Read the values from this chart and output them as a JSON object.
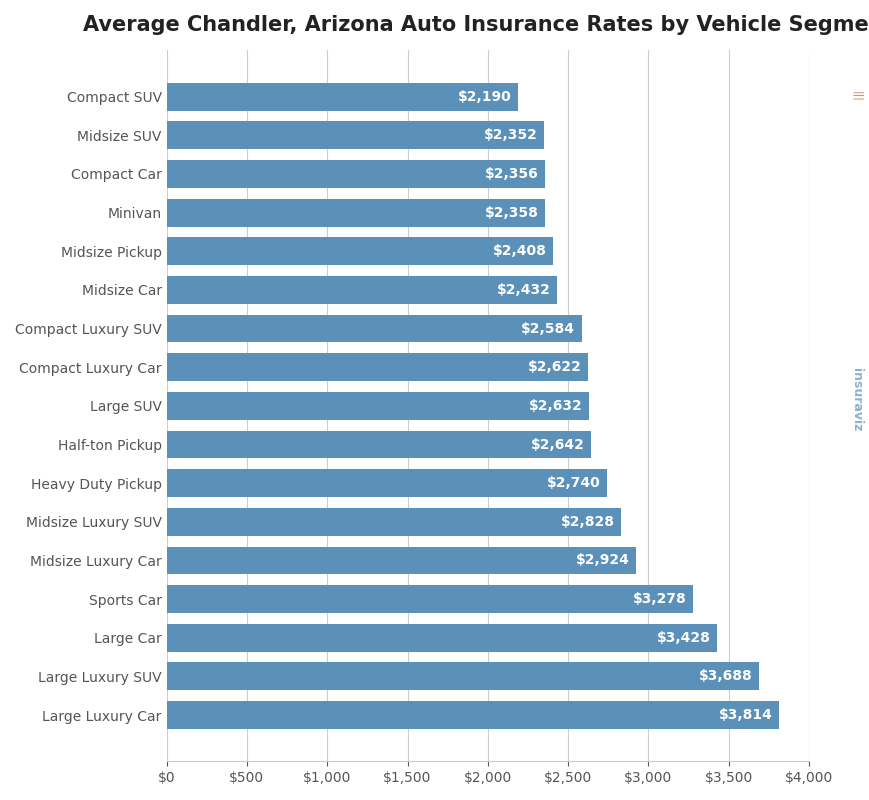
{
  "title": "Average Chandler, Arizona Auto Insurance Rates by Vehicle Segment",
  "categories": [
    "Compact SUV",
    "Midsize SUV",
    "Compact Car",
    "Minivan",
    "Midsize Pickup",
    "Midsize Car",
    "Compact Luxury SUV",
    "Compact Luxury Car",
    "Large SUV",
    "Half-ton Pickup",
    "Heavy Duty Pickup",
    "Midsize Luxury SUV",
    "Midsize Luxury Car",
    "Sports Car",
    "Large Car",
    "Large Luxury SUV",
    "Large Luxury Car"
  ],
  "values": [
    2190,
    2352,
    2356,
    2358,
    2408,
    2432,
    2584,
    2622,
    2632,
    2642,
    2740,
    2828,
    2924,
    3278,
    3428,
    3688,
    3814
  ],
  "bar_color": "#5b90b8",
  "label_color": "#ffffff",
  "background_color": "#ffffff",
  "grid_color": "#cccccc",
  "title_fontsize": 15,
  "label_fontsize": 10,
  "tick_fontsize": 10,
  "xlim": [
    0,
    4000
  ],
  "xticks": [
    0,
    500,
    1000,
    1500,
    2000,
    2500,
    3000,
    3500,
    4000
  ],
  "watermark_color": "#5b90b8"
}
